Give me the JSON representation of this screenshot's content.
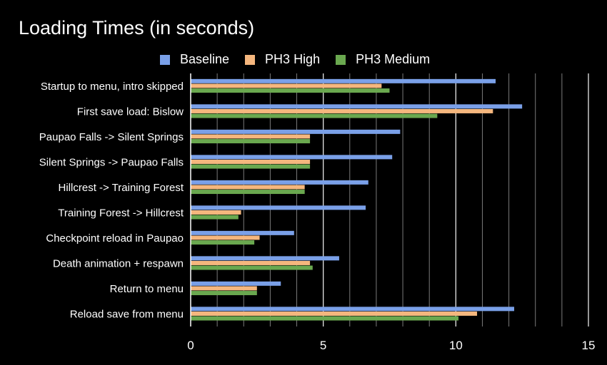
{
  "chart_data": {
    "type": "bar",
    "orientation": "horizontal",
    "title": "Loading Times (in seconds)",
    "xlabel": "",
    "ylabel": "",
    "xlim": [
      0,
      15
    ],
    "x_ticks": [
      0,
      5,
      10,
      15
    ],
    "minor_gridlines": true,
    "legend_position": "top",
    "background": "#000000",
    "categories": [
      "Startup to menu, intro skipped",
      "First save load: Bislow",
      "Paupao Falls -> Silent Springs",
      "Silent Springs -> Paupao Falls",
      "Hillcrest -> Training Forest",
      "Training Forest -> Hillcrest",
      "Checkpoint reload in Paupao",
      "Death animation + respawn",
      "Return to menu",
      "Reload save from menu"
    ],
    "series": [
      {
        "name": "Baseline",
        "color": "#7aa0e8",
        "values": [
          11.5,
          12.5,
          7.9,
          7.6,
          6.7,
          6.6,
          3.9,
          5.6,
          3.4,
          12.2
        ]
      },
      {
        "name": "PH3 High",
        "color": "#f5b77e",
        "values": [
          7.2,
          11.4,
          4.5,
          4.5,
          4.3,
          1.9,
          2.6,
          4.5,
          2.5,
          10.8
        ]
      },
      {
        "name": "PH3 Medium",
        "color": "#6aa84f",
        "values": [
          7.5,
          9.3,
          4.5,
          4.5,
          4.3,
          1.8,
          2.4,
          4.6,
          2.5,
          10.1
        ]
      }
    ]
  }
}
